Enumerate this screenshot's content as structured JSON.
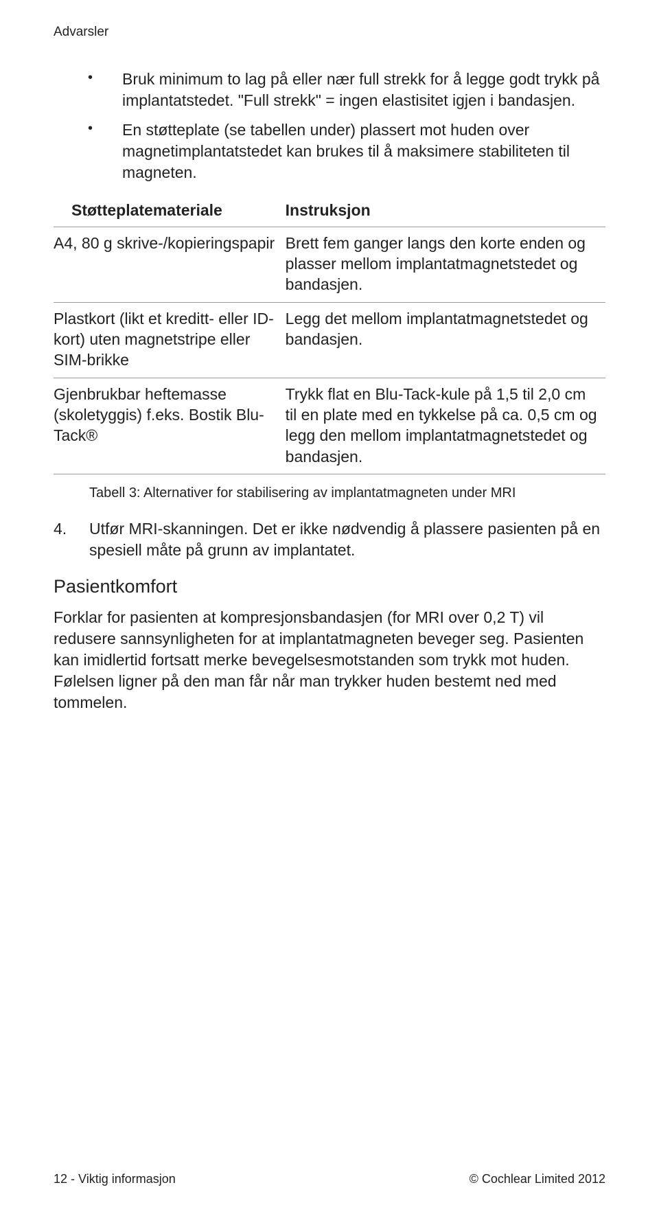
{
  "running_header": "Advarsler",
  "bullets": [
    "Bruk minimum to lag på eller nær full strekk for å legge godt trykk på implantatstedet. \"Full strekk\" = ingen elastisitet igjen i bandasjen.",
    "En støtteplate (se tabellen under) plassert mot huden over magnetimplantatstedet kan brukes til å maksimere stabiliteten til magneten."
  ],
  "table": {
    "col1_header": "Støtteplatemateriale",
    "col2_header": "Instruksjon",
    "rows": [
      {
        "c1": "A4, 80 g skrive-/kopieringspapir",
        "c2": "Brett fem ganger langs den korte enden og plasser mellom implantat­magnetstedet og bandasjen."
      },
      {
        "c1": "Plastkort (likt et kreditt- eller ID-kort) uten magnetstripe eller SIM-brikke",
        "c2": "Legg det mellom implantatmagnetstedet og bandasjen."
      },
      {
        "c1": "Gjenbrukbar heftemasse (skoletyggis) f.eks. Bostik Blu-Tack®",
        "c2": "Trykk flat en Blu-Tack-kule på 1,5 til 2,0 cm til en plate med en tykkelse på ca. 0,5 cm og legg den mellom implantatmagnetstedet og bandasjen."
      }
    ],
    "caption": "Tabell 3: Alternativer for stabilisering av implantatmagneten under MRI"
  },
  "step4_num": "4.",
  "step4_text": "Utfør MRI-skanningen. Det er ikke nødvendig å plassere pasienten på en spesiell måte på grunn av implantatet.",
  "subhead": "Pasientkomfort",
  "para": "Forklar for pasienten at kompresjonsbandasjen (for MRI over 0,2 T) vil redusere sannsynligheten for at implantatmagneten beveger seg. Pasienten kan imidlertid fortsatt merke bevegelsesmotstanden som trykk mot huden. Følelsen ligner på den man får når man trykker huden bestemt ned med tommelen.",
  "footer_left": "12 - Viktig informasjon",
  "footer_right": "© Cochlear Limited 2012"
}
